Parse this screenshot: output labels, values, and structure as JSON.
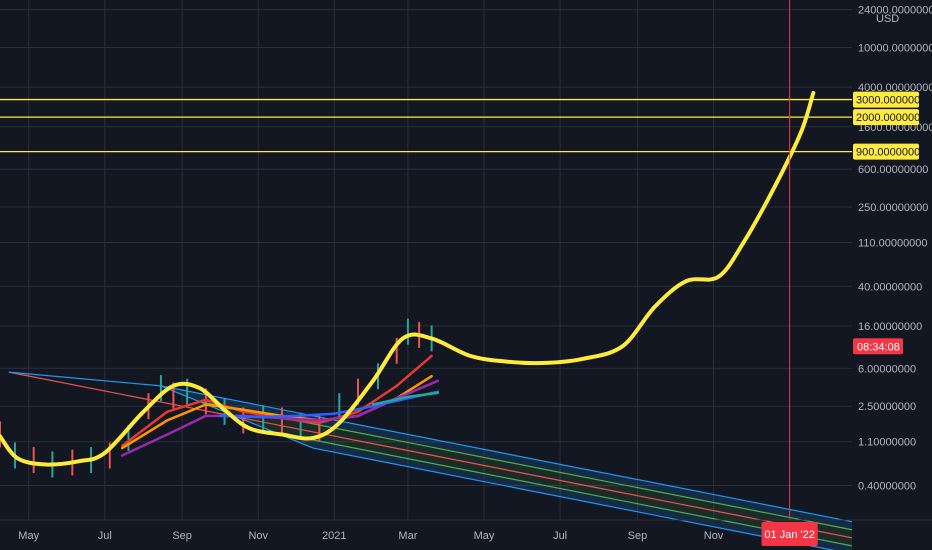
{
  "chart_data": {
    "type": "line",
    "title": "",
    "currency_label": "USD",
    "y_scale": "log",
    "y_ticks": [
      "24000.00000000",
      "10000.00000000",
      "4000.00000000",
      "1600.00000000",
      "600.00000000",
      "250.00000000",
      "110.00000000",
      "40.00000000",
      "16.00000000",
      "6.00000000",
      "2.50000000",
      "1.10000000",
      "0.40000000"
    ],
    "y_tick_values": [
      24000,
      10000,
      4000,
      1600,
      600,
      250,
      110,
      40,
      16,
      6,
      2.5,
      1.1,
      0.4
    ],
    "x_ticks": [
      "May",
      "Jul",
      "Sep",
      "Nov",
      "2021",
      "Mar",
      "May",
      "Jul",
      "Sep",
      "Nov"
    ],
    "x_tick_dates": [
      "2020-05-01",
      "2020-07-01",
      "2020-09-01",
      "2020-11-01",
      "2021-01-01",
      "2021-03-01",
      "2021-05-01",
      "2021-07-01",
      "2021-09-01",
      "2021-11-01"
    ],
    "ylim": [
      0.18,
      30000
    ],
    "xlim": [
      "2020-04-08",
      "2022-02-20"
    ],
    "horizontal_levels": [
      {
        "label": "3000.00000000",
        "value": 3000,
        "color": "#ffeb3b"
      },
      {
        "label": "2000.00000000",
        "value": 2000,
        "color": "#ffeb3b"
      },
      {
        "label": "900.00000000",
        "value": 900,
        "color": "#ffeb3b"
      }
    ],
    "vertical_marker": {
      "date": "2022-01-01",
      "label": "01 Jan '22",
      "color": "#f23645"
    },
    "countdown_label": "08:34:08",
    "countdown_value": 10,
    "projection_path": [
      [
        "2020-04-08",
        1.25
      ],
      [
        "2020-04-22",
        0.75
      ],
      [
        "2020-05-15",
        0.65
      ],
      [
        "2020-06-10",
        0.7
      ],
      [
        "2020-07-01",
        0.85
      ],
      [
        "2020-08-01",
        2.2
      ],
      [
        "2020-08-25",
        4.0
      ],
      [
        "2020-09-15",
        3.8
      ],
      [
        "2020-10-05",
        2.3
      ],
      [
        "2020-10-25",
        1.5
      ],
      [
        "2020-11-20",
        1.3
      ],
      [
        "2020-12-15",
        1.2
      ],
      [
        "2021-01-05",
        1.7
      ],
      [
        "2021-02-01",
        4.5
      ],
      [
        "2021-02-25",
        12.0
      ],
      [
        "2021-03-20",
        12.0
      ],
      [
        "2021-04-20",
        8.0
      ],
      [
        "2021-05-20",
        7.0
      ],
      [
        "2021-06-20",
        6.8
      ],
      [
        "2021-07-20",
        7.5
      ],
      [
        "2021-08-20",
        10.0
      ],
      [
        "2021-09-15",
        25.0
      ],
      [
        "2021-10-10",
        45.0
      ],
      [
        "2021-11-05",
        50.0
      ],
      [
        "2021-11-25",
        110.0
      ],
      [
        "2021-12-20",
        400.0
      ],
      [
        "2022-01-10",
        1400.0
      ],
      [
        "2022-01-20",
        3500.0
      ]
    ],
    "price_bars": [
      [
        "2020-04-08",
        1.3
      ],
      [
        "2020-04-20",
        0.8
      ],
      [
        "2020-05-05",
        0.72
      ],
      [
        "2020-05-20",
        0.65
      ],
      [
        "2020-06-05",
        0.68
      ],
      [
        "2020-06-20",
        0.72
      ],
      [
        "2020-07-05",
        0.8
      ],
      [
        "2020-07-20",
        1.2
      ],
      [
        "2020-08-05",
        2.5
      ],
      [
        "2020-08-15",
        3.8
      ],
      [
        "2020-08-25",
        3.2
      ],
      [
        "2020-09-05",
        3.5
      ],
      [
        "2020-09-20",
        2.8
      ],
      [
        "2020-10-05",
        2.2
      ],
      [
        "2020-10-20",
        1.8
      ],
      [
        "2020-11-05",
        1.9
      ],
      [
        "2020-11-20",
        1.8
      ],
      [
        "2020-12-05",
        1.6
      ],
      [
        "2020-12-20",
        1.5
      ],
      [
        "2021-01-05",
        2.5
      ],
      [
        "2021-01-20",
        3.5
      ],
      [
        "2021-02-05",
        5.0
      ],
      [
        "2021-02-20",
        9.0
      ],
      [
        "2021-03-01",
        14.0
      ],
      [
        "2021-03-10",
        13.0
      ],
      [
        "2021-03-20",
        12.0
      ]
    ],
    "moving_averages": [
      {
        "color": "#e53935",
        "points": [
          [
            "2020-07-15",
            1.0
          ],
          [
            "2020-08-20",
            2.2
          ],
          [
            "2020-09-20",
            2.9
          ],
          [
            "2020-10-20",
            2.2
          ],
          [
            "2020-11-20",
            1.9
          ],
          [
            "2020-12-20",
            1.7
          ],
          [
            "2021-01-20",
            2.2
          ],
          [
            "2021-02-20",
            4.0
          ],
          [
            "2021-03-20",
            8.0
          ]
        ]
      },
      {
        "color": "#ff9800",
        "points": [
          [
            "2020-07-15",
            0.95
          ],
          [
            "2020-08-20",
            1.8
          ],
          [
            "2020-09-20",
            2.6
          ],
          [
            "2020-10-20",
            2.3
          ],
          [
            "2020-11-20",
            2.0
          ],
          [
            "2020-12-20",
            1.8
          ],
          [
            "2021-01-20",
            2.0
          ],
          [
            "2021-02-20",
            3.0
          ],
          [
            "2021-03-20",
            5.0
          ]
        ]
      },
      {
        "color": "#9c27b0",
        "points": [
          [
            "2020-07-15",
            0.8
          ],
          [
            "2020-08-20",
            1.3
          ],
          [
            "2020-09-20",
            2.0
          ],
          [
            "2020-10-20",
            2.0
          ],
          [
            "2020-11-20",
            1.9
          ],
          [
            "2020-12-20",
            1.8
          ],
          [
            "2021-01-20",
            2.0
          ],
          [
            "2021-02-20",
            3.0
          ],
          [
            "2021-03-25",
            4.5
          ]
        ]
      },
      {
        "color": "#2962ff",
        "points": [
          [
            "2020-10-01",
            2.0
          ],
          [
            "2020-11-01",
            1.95
          ],
          [
            "2020-12-01",
            2.0
          ],
          [
            "2021-01-01",
            2.1
          ],
          [
            "2021-02-01",
            2.5
          ],
          [
            "2021-03-01",
            3.0
          ],
          [
            "2021-03-25",
            3.5
          ]
        ]
      },
      {
        "color": "#26a69a",
        "points": [
          [
            "2021-02-01",
            2.6
          ],
          [
            "2021-03-01",
            3.1
          ],
          [
            "2021-03-25",
            3.4
          ]
        ]
      }
    ],
    "pitchfork": {
      "pivot": [
        "2020-04-15",
        5.5
      ],
      "upper_anchor": [
        "2020-08-15",
        4.0
      ],
      "lower_anchor": [
        "2020-12-15",
        0.95
      ],
      "end_date": "2022-02-20"
    }
  }
}
